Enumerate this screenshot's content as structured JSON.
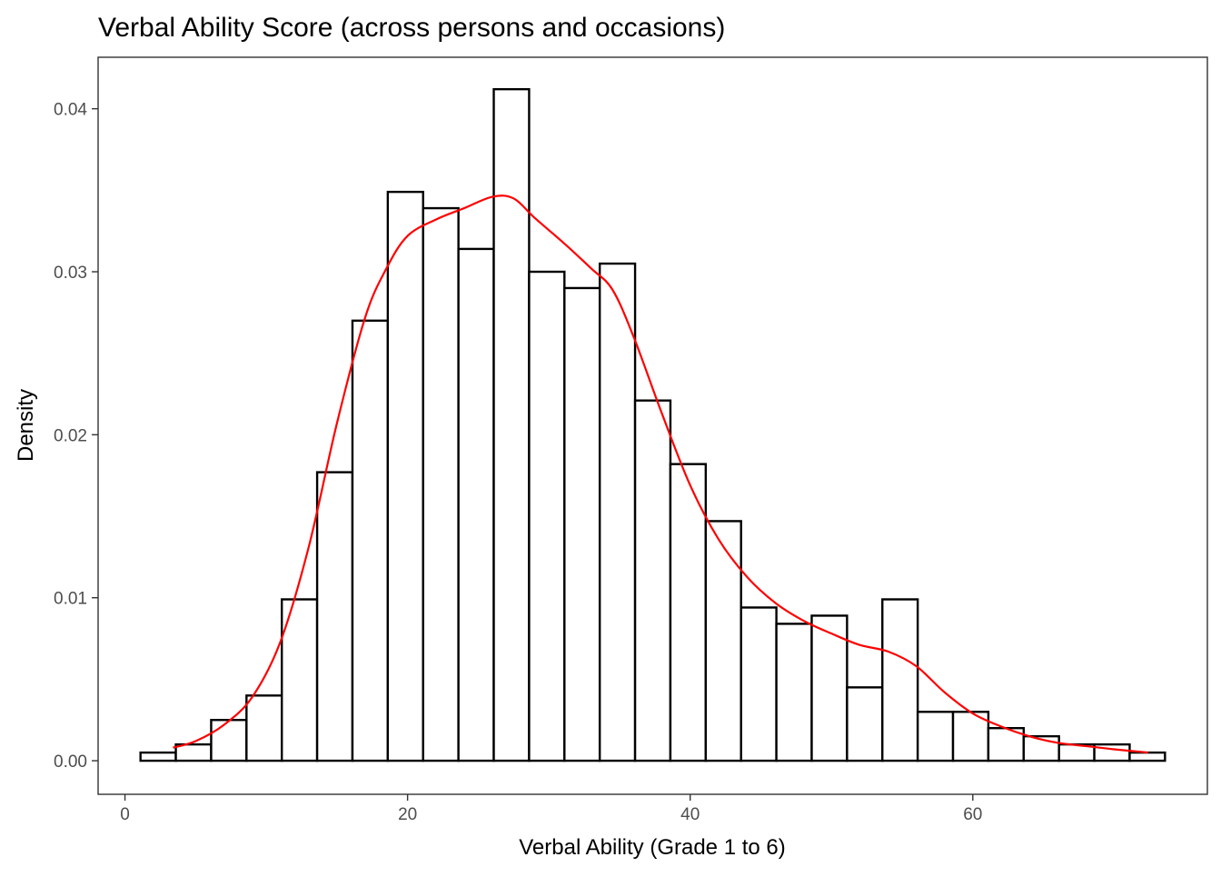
{
  "chart_data": {
    "type": "bar",
    "title": "Verbal Ability Score (across persons and occasions)",
    "xlabel": "Verbal Ability (Grade 1 to 6)",
    "ylabel": "Density",
    "xlim": [
      -1.9,
      76.6
    ],
    "ylim": [
      -0.00206,
      0.04316
    ],
    "x_ticks": [
      0,
      20,
      40,
      60
    ],
    "x_tick_labels": [
      "0",
      "20",
      "40",
      "60"
    ],
    "y_ticks": [
      0.0,
      0.01,
      0.02,
      0.03,
      0.04
    ],
    "y_tick_labels": [
      "0.00",
      "0.01",
      "0.02",
      "0.03",
      "0.04"
    ],
    "grid": false,
    "bins": {
      "start": 1.1,
      "width": 2.5,
      "values": [
        0.0005,
        0.001,
        0.0025,
        0.004,
        0.0099,
        0.0177,
        0.027,
        0.0349,
        0.0339,
        0.0314,
        0.0412,
        0.03,
        0.029,
        0.0305,
        0.0221,
        0.0182,
        0.0147,
        0.0094,
        0.0084,
        0.0089,
        0.0045,
        0.0099,
        0.003,
        0.003,
        0.002,
        0.0015,
        0.001,
        0.001,
        0.0005
      ]
    },
    "series": [
      {
        "type": "line",
        "color": "#ff0000",
        "x": [
          3.4,
          5,
          7,
          9,
          11,
          13,
          15,
          17,
          18.5,
          20,
          22,
          24,
          26,
          27.5,
          29,
          31,
          33,
          34.5,
          36,
          38,
          40,
          42,
          44,
          46,
          48,
          50,
          52,
          54,
          56,
          58,
          60,
          62,
          64,
          66,
          68,
          70,
          72.4
        ],
        "y": [
          0.0008,
          0.0012,
          0.0022,
          0.0039,
          0.0073,
          0.0131,
          0.0207,
          0.0272,
          0.0302,
          0.0322,
          0.0332,
          0.0339,
          0.0346,
          0.0345,
          0.0333,
          0.0318,
          0.0302,
          0.0289,
          0.026,
          0.0213,
          0.0169,
          0.0136,
          0.0113,
          0.0097,
          0.0086,
          0.0078,
          0.0071,
          0.0067,
          0.0058,
          0.0042,
          0.0029,
          0.0021,
          0.0015,
          0.0011,
          0.0009,
          0.0007,
          0.0005
        ]
      }
    ]
  }
}
